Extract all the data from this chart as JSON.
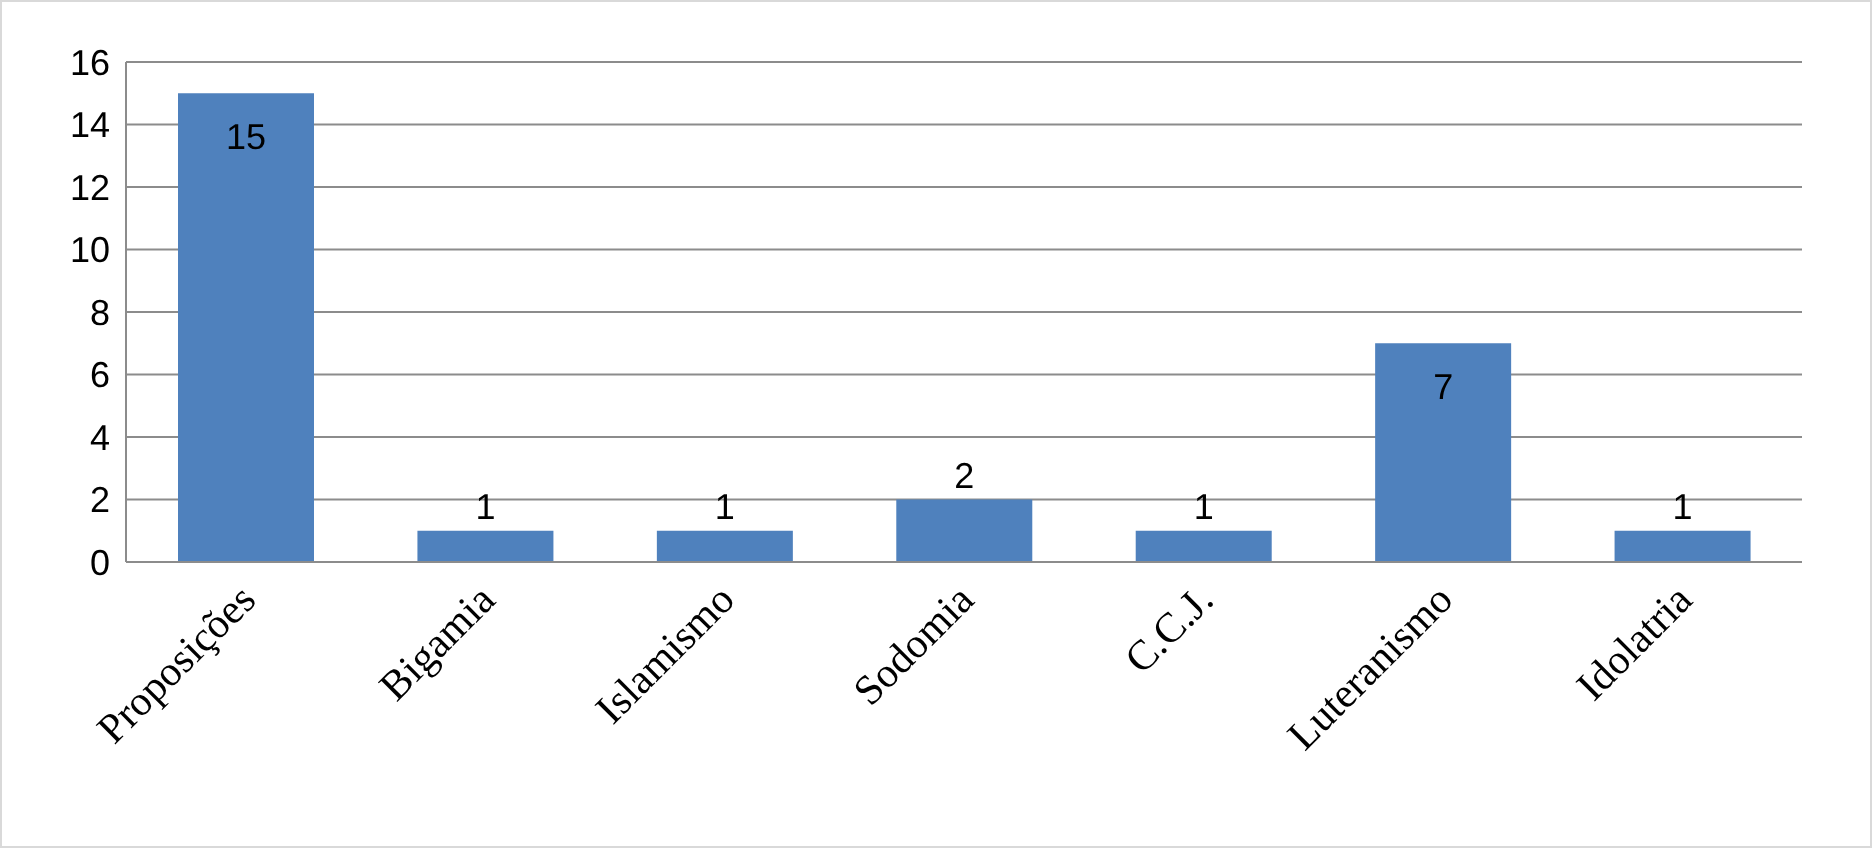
{
  "chart_data": {
    "type": "bar",
    "categories": [
      "Proposições",
      "Bigamia",
      "Islamismo",
      "Sodomia",
      "C.C.J.",
      "Luteranismo",
      "Idolatria"
    ],
    "values": [
      15,
      1,
      1,
      2,
      1,
      7,
      1
    ],
    "color": "#4f81bd",
    "ylim": [
      0,
      16
    ],
    "yticks": [
      0,
      2,
      4,
      6,
      8,
      10,
      12,
      14,
      16
    ],
    "grid": "y",
    "data_labels": true
  }
}
